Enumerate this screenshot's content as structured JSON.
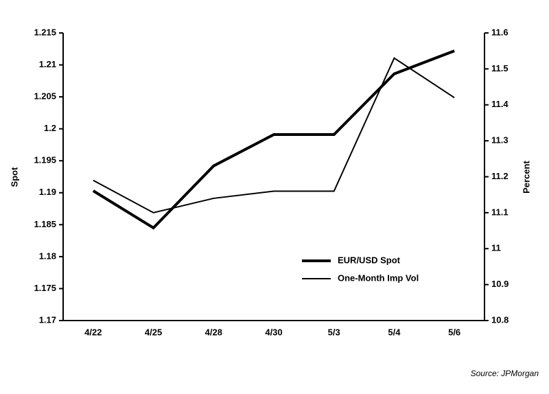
{
  "chart_data": {
    "type": "line",
    "categories": [
      "4/22",
      "4/25",
      "4/28",
      "4/30",
      "5/3",
      "5/4",
      "5/6"
    ],
    "series": [
      {
        "name": "EUR/USD Spot",
        "color": "#000000",
        "values": [
          1.1903,
          1.1845,
          1.1942,
          1.1991,
          1.1991,
          1.2086,
          1.2122
        ]
      },
      {
        "name": "One-Month Imp Vol",
        "color": "#000000",
        "axis": "y2",
        "values": [
          11.19,
          11.1,
          11.14,
          11.16,
          11.16,
          11.53,
          11.42
        ]
      }
    ],
    "ylabel": "Spot",
    "y2label": "Percent",
    "ylim": [
      1.17,
      1.215
    ],
    "yticks": [
      1.17,
      1.175,
      1.18,
      1.185,
      1.19,
      1.195,
      1.2,
      1.205,
      1.21,
      1.215
    ],
    "y2lim": [
      10.8,
      11.6
    ],
    "y2ticks": [
      10.8,
      10.9,
      11,
      11.1,
      11.2,
      11.3,
      11.4,
      11.5,
      11.6
    ],
    "legend": "lower right",
    "source": "Source: JPMorgan"
  }
}
